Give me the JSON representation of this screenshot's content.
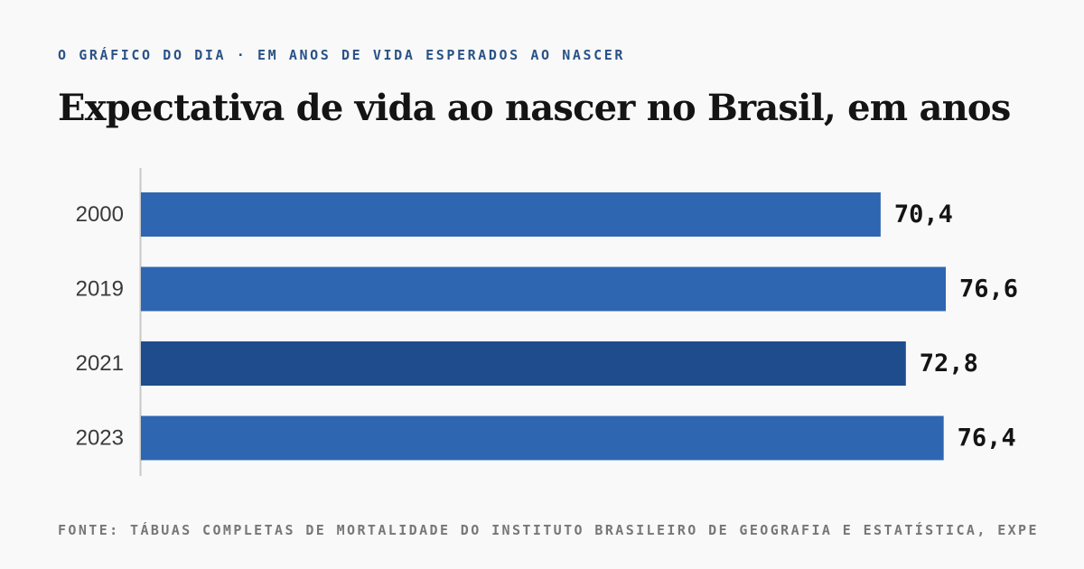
{
  "kicker": "O GRÁFICO DO DIA · EM ANOS DE VIDA ESPERADOS AO NASCER",
  "footer": "FONTE: TÁBUAS COMPLETAS DE MORTALIDADE DO INSTITUTO BRASILEIRO DE GEOGRAFIA E ESTATÍSTICA, EXPE",
  "colors": {
    "bar": "#2e66b2",
    "bar_highlight": "#1f4c8c",
    "axis": "#c8c8c8"
  },
  "chart_data": {
    "type": "bar",
    "orientation": "horizontal",
    "title": "Expectativa de vida ao nascer no Brasil, em anos",
    "categories": [
      "2000",
      "2019",
      "2021",
      "2023"
    ],
    "values": [
      70.4,
      76.6,
      72.8,
      76.4
    ],
    "value_labels": [
      "70,4",
      "76,6",
      "72,8",
      "76,4"
    ],
    "highlight_category": "2021",
    "xlim": [
      0,
      76.6
    ],
    "grid": false,
    "legend": "none"
  }
}
